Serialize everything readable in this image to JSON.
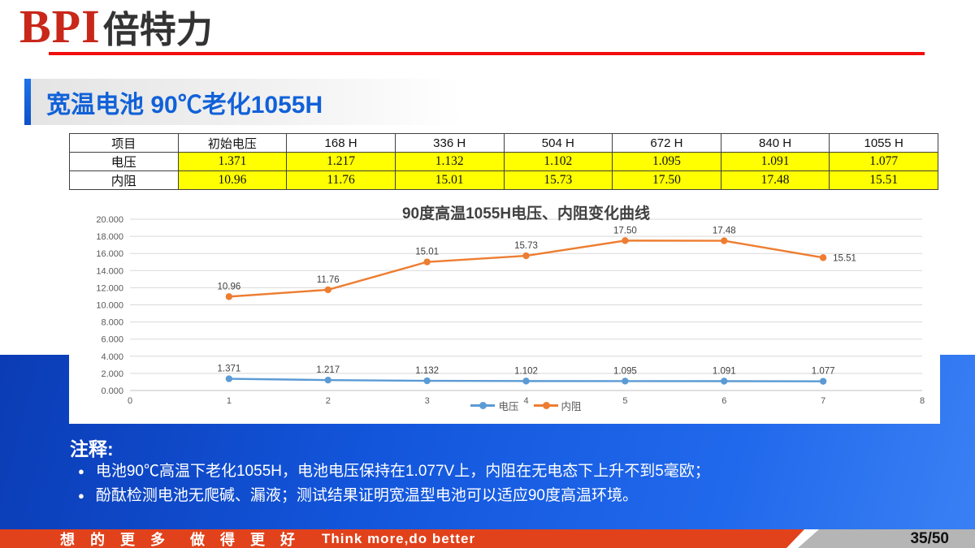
{
  "logo": {
    "bpi": "BPI",
    "cn": "倍特力"
  },
  "title": "宽温电池 90℃老化1055H",
  "table": {
    "headers": [
      "项目",
      "初始电压",
      "168 H",
      "336 H",
      "504 H",
      "672 H",
      "840 H",
      "1055 H"
    ],
    "rows": [
      {
        "label": "电压",
        "values": [
          "1.371",
          "1.217",
          "1.132",
          "1.102",
          "1.095",
          "1.091",
          "1.077"
        ]
      },
      {
        "label": "内阻",
        "values": [
          "10.96",
          "11.76",
          "15.01",
          "15.73",
          "17.50",
          "17.48",
          "15.51"
        ]
      }
    ],
    "highlight_color": "#ffff00"
  },
  "chart_data": {
    "type": "line",
    "title": "90度高温1055H电压、内阻变化曲线",
    "x": [
      1,
      2,
      3,
      4,
      5,
      6,
      7
    ],
    "xlim": [
      0,
      8
    ],
    "xticks": [
      0,
      1,
      2,
      3,
      4,
      5,
      6,
      7,
      8
    ],
    "ylim": [
      0,
      20
    ],
    "ytick_step": 2,
    "grid": true,
    "legend_position": "bottom",
    "series": [
      {
        "name": "电压",
        "color": "#5B9BD5",
        "values": [
          1.371,
          1.217,
          1.132,
          1.102,
          1.095,
          1.091,
          1.077
        ],
        "labels": [
          "1.371",
          "1.217",
          "1.132",
          "1.102",
          "1.095",
          "1.091",
          "1.077"
        ],
        "label_positions": [
          "top",
          "top",
          "top",
          "top",
          "top",
          "top",
          "top"
        ]
      },
      {
        "name": "内阻",
        "color": "#ED7D31",
        "values": [
          10.96,
          11.76,
          15.01,
          15.73,
          17.5,
          17.48,
          15.51
        ],
        "labels": [
          "10.96",
          "11.76",
          "15.01",
          "15.73",
          "17.50",
          "17.48",
          "15.51"
        ],
        "label_positions": [
          "top",
          "top",
          "top",
          "top",
          "top",
          "top",
          "right"
        ]
      }
    ]
  },
  "notes": {
    "heading": "注释:",
    "bullet_glyph": "●",
    "bullets": [
      "电池90℃高温下老化1055H，电池电压保持在1.077V上，内阻在无电态下上升不到5毫欧；",
      "酚酞检测电池无爬碱、漏液；测试结果证明宽温型电池可以适应90度高温环境。"
    ]
  },
  "footer": {
    "slogan_cn": "想 的 更 多  做 得 更 好",
    "slogan_en": "Think more,do better",
    "page": "35/50"
  },
  "colors": {
    "brand_red": "#c8271a",
    "rule_red": "#f20d0d",
    "accent_blue": "#1161d8",
    "background_blue": "#1356dc",
    "footer_orange": "#e2421b",
    "footer_gray": "#b5b5b5",
    "highlight_yellow": "#ffff00"
  }
}
